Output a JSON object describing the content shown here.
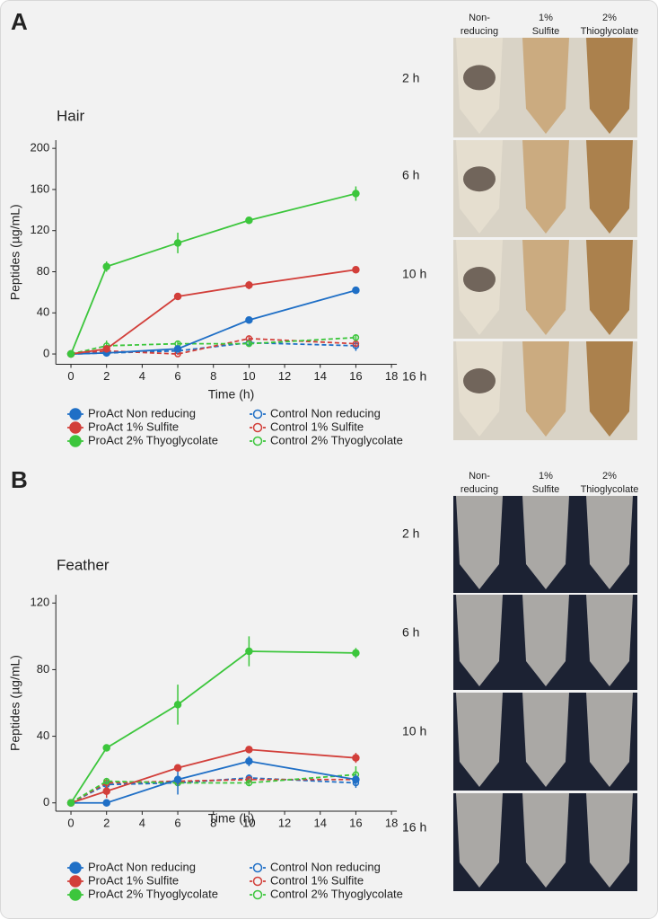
{
  "panels": [
    {
      "letter": "A",
      "photo_columns": [
        [
          "Non-",
          "reducing"
        ],
        [
          "1%",
          "Sulfite"
        ],
        [
          "2%",
          "Thioglycolate"
        ]
      ],
      "photo_rows": [
        "2 h",
        "6 h",
        "10 h",
        "16 h"
      ]
    },
    {
      "letter": "B",
      "photo_columns": [
        [
          "Non-",
          "reducing"
        ],
        [
          "1%",
          "Sulfite"
        ],
        [
          "2%",
          "Thioglycolate"
        ]
      ],
      "photo_rows": [
        "2 h",
        "6 h",
        "10 h",
        "16 h"
      ]
    }
  ],
  "chart_data": [
    {
      "type": "line",
      "title": "Hair",
      "x_label": "Time (h)",
      "y_label": "Peptides (µg/mL)",
      "x": [
        0,
        2,
        6,
        10,
        16
      ],
      "xlim": [
        -1,
        18.5
      ],
      "xticks": [
        0,
        2,
        4,
        6,
        8,
        10,
        12,
        14,
        16,
        18
      ],
      "ylim": [
        -10,
        208
      ],
      "yticks": [
        0,
        40,
        80,
        120,
        160,
        200
      ],
      "series": [
        {
          "name": "ProAct Non reducing",
          "color": "#1f6fc6",
          "dashed": false,
          "marker": "filled",
          "values": [
            0,
            1,
            5,
            33,
            62
          ],
          "errors": [
            0,
            1,
            1,
            2,
            3
          ]
        },
        {
          "name": "ProAct 1% Sulfite",
          "color": "#d23f3a",
          "dashed": false,
          "marker": "filled",
          "values": [
            0,
            5,
            56,
            67,
            82
          ],
          "errors": [
            0,
            2,
            3,
            4,
            2
          ]
        },
        {
          "name": "ProAct 2% Thyoglycolate",
          "color": "#3cc63c",
          "dashed": false,
          "marker": "filled",
          "values": [
            0,
            85,
            108,
            130,
            156
          ],
          "errors": [
            0,
            5,
            10,
            2,
            7
          ]
        },
        {
          "name": "Control Non reducing",
          "color": "#1f6fc6",
          "dashed": true,
          "marker": "open",
          "values": [
            0,
            1,
            3,
            11,
            8
          ],
          "errors": [
            0,
            1,
            1,
            2,
            5
          ]
        },
        {
          "name": "Control 1% Sulfite",
          "color": "#d23f3a",
          "dashed": true,
          "marker": "open",
          "values": [
            0,
            3,
            0,
            15,
            10
          ],
          "errors": [
            0,
            2,
            1,
            2,
            2
          ]
        },
        {
          "name": "Control 2% Thyoglycolate",
          "color": "#3cc63c",
          "dashed": true,
          "marker": "open",
          "values": [
            0,
            8,
            10,
            10,
            16
          ],
          "errors": [
            0,
            5,
            2,
            2,
            2
          ]
        }
      ]
    },
    {
      "type": "line",
      "title": "Feather",
      "x_label": "Time (h)",
      "y_label": "Peptides (µg/mL)",
      "x": [
        0,
        2,
        6,
        10,
        16
      ],
      "xlim": [
        -1,
        18.5
      ],
      "xticks": [
        0,
        2,
        4,
        6,
        8,
        10,
        12,
        14,
        16,
        18
      ],
      "ylim": [
        -5,
        125
      ],
      "yticks": [
        0,
        40,
        80,
        120
      ],
      "series": [
        {
          "name": "ProAct Non reducing",
          "color": "#1f6fc6",
          "dashed": false,
          "marker": "filled",
          "values": [
            0,
            0,
            14,
            25,
            14
          ],
          "errors": [
            0,
            0,
            9,
            3,
            3
          ]
        },
        {
          "name": "ProAct 1% Sulfite",
          "color": "#d23f3a",
          "dashed": false,
          "marker": "filled",
          "values": [
            0,
            7,
            21,
            32,
            27
          ],
          "errors": [
            0,
            4,
            2,
            2,
            3
          ]
        },
        {
          "name": "ProAct 2% Thyoglycolate",
          "color": "#3cc63c",
          "dashed": false,
          "marker": "filled",
          "values": [
            0,
            33,
            59,
            91,
            90
          ],
          "errors": [
            0,
            2,
            12,
            9,
            3
          ]
        },
        {
          "name": "Control Non reducing",
          "color": "#1f6fc6",
          "dashed": true,
          "marker": "open",
          "values": [
            0,
            11,
            12,
            15,
            12
          ],
          "errors": [
            0,
            2,
            2,
            2,
            3
          ]
        },
        {
          "name": "Control 1% Sulfite",
          "color": "#d23f3a",
          "dashed": true,
          "marker": "open",
          "values": [
            0,
            12,
            13,
            14,
            14
          ],
          "errors": [
            0,
            2,
            2,
            2,
            2
          ]
        },
        {
          "name": "Control 2% Thyoglycolate",
          "color": "#3cc63c",
          "dashed": true,
          "marker": "open",
          "values": [
            0,
            13,
            12,
            12,
            17
          ],
          "errors": [
            0,
            2,
            2,
            2,
            5
          ]
        }
      ]
    }
  ]
}
